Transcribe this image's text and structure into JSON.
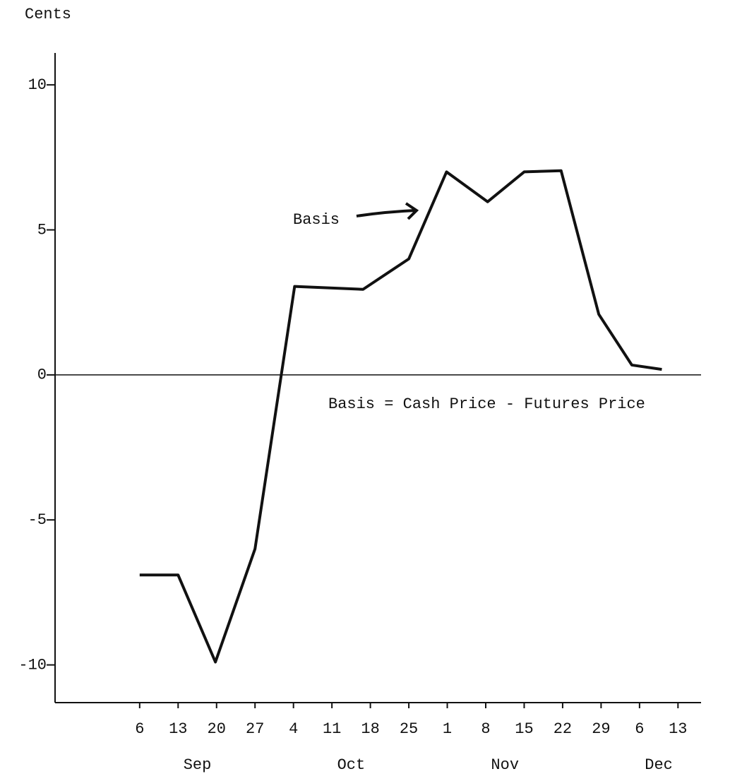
{
  "chart_data": {
    "type": "line",
    "y_label": "Cents",
    "annotations": [
      "Basis",
      "Basis = Cash Price - Futures Price"
    ],
    "x": [
      0,
      1,
      1.97,
      3.0,
      4.03,
      5.81,
      7.0,
      7.98,
      9.05,
      10.0,
      10.96,
      11.94,
      12.8,
      13.58
    ],
    "series": [
      {
        "name": "Basis",
        "color": "#111111",
        "values": [
          -6.9,
          -6.9,
          -9.9,
          -6.0,
          3.05,
          2.95,
          4.0,
          7.0,
          5.97,
          7.0,
          7.04,
          2.09,
          0.34,
          0.19
        ]
      }
    ],
    "xlim": [
      -2.2,
      14.6
    ],
    "xticks": [
      {
        "value": 0,
        "label": "6"
      },
      {
        "value": 1,
        "label": "13"
      },
      {
        "value": 2,
        "label": "20"
      },
      {
        "value": 3,
        "label": "27"
      },
      {
        "value": 4,
        "label": "4"
      },
      {
        "value": 5,
        "label": "11"
      },
      {
        "value": 6,
        "label": "18"
      },
      {
        "value": 7,
        "label": "25"
      },
      {
        "value": 8,
        "label": "1"
      },
      {
        "value": 9,
        "label": "8"
      },
      {
        "value": 10,
        "label": "15"
      },
      {
        "value": 11,
        "label": "22"
      },
      {
        "value": 12,
        "label": "29"
      },
      {
        "value": 13,
        "label": "6"
      },
      {
        "value": 14,
        "label": "13"
      }
    ],
    "months": [
      "Sep",
      "Oct",
      "Nov",
      "Dec"
    ],
    "ylim": [
      -11.3,
      11.1
    ],
    "yticks": [
      -10,
      -5,
      0,
      5,
      10
    ],
    "zero_line": true
  }
}
